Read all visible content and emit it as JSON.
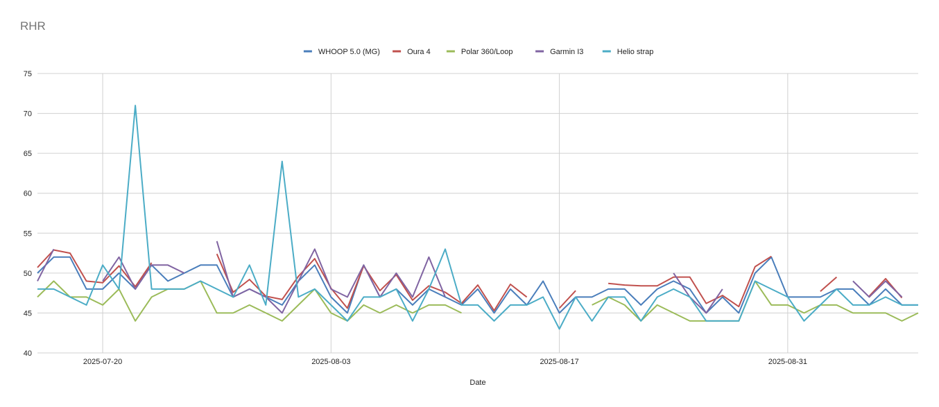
{
  "chart_data": {
    "type": "line",
    "title": "RHR",
    "xlabel": "Date",
    "ylabel": "",
    "ylim": [
      40,
      75
    ],
    "yticks": [
      40,
      45,
      50,
      55,
      60,
      65,
      70,
      75
    ],
    "x_start": "2025-07-16",
    "x_end": "2025-09-08",
    "xticks": [
      "2025-07-20",
      "2025-08-03",
      "2025-08-17",
      "2025-08-31"
    ],
    "grid": true,
    "legend_position": "top",
    "colors": {
      "WHOOP 5.0 (MG)": "#4a7ebb",
      "Oura 4": "#c0504d",
      "Polar 360/Loop": "#9bbb59",
      "Garmin I3": "#8064a2",
      "Helio strap": "#4bacc6"
    },
    "series": [
      {
        "name": "WHOOP 5.0 (MG)",
        "points": [
          [
            "2025-07-16",
            50
          ],
          [
            "2025-07-17",
            52
          ],
          [
            "2025-07-18",
            52
          ],
          [
            "2025-07-19",
            48
          ],
          [
            "2025-07-20",
            48
          ],
          [
            "2025-07-21",
            50
          ],
          [
            "2025-07-22",
            48
          ],
          [
            "2025-07-23",
            51
          ],
          [
            "2025-07-24",
            49
          ],
          [
            "2025-07-25",
            50
          ],
          [
            "2025-07-26",
            51
          ],
          [
            "2025-07-27",
            51
          ],
          [
            "2025-07-28",
            47
          ],
          [
            "2025-07-29",
            48
          ],
          [
            "2025-07-30",
            47
          ],
          [
            "2025-07-31",
            46
          ],
          [
            "2025-08-01",
            49
          ],
          [
            "2025-08-02",
            51
          ],
          [
            "2025-08-03",
            47
          ],
          [
            "2025-08-04",
            45
          ],
          [
            "2025-08-05",
            51
          ],
          [
            "2025-08-06",
            47
          ],
          [
            "2025-08-07",
            48
          ],
          [
            "2025-08-08",
            46
          ],
          [
            "2025-08-09",
            48
          ],
          [
            "2025-08-10",
            47
          ],
          [
            "2025-08-11",
            46
          ],
          [
            "2025-08-12",
            48
          ],
          [
            "2025-08-13",
            45
          ],
          [
            "2025-08-14",
            48
          ],
          [
            "2025-08-15",
            46
          ],
          [
            "2025-08-16",
            49
          ],
          [
            "2025-08-17",
            45
          ],
          [
            "2025-08-18",
            47
          ],
          [
            "2025-08-19",
            47
          ],
          [
            "2025-08-20",
            48
          ],
          [
            "2025-08-21",
            48
          ],
          [
            "2025-08-22",
            46
          ],
          [
            "2025-08-23",
            48
          ],
          [
            "2025-08-24",
            49
          ],
          [
            "2025-08-25",
            48
          ],
          [
            "2025-08-26",
            45
          ],
          [
            "2025-08-27",
            47
          ],
          [
            "2025-08-28",
            45
          ],
          [
            "2025-08-29",
            50
          ],
          [
            "2025-08-30",
            52
          ],
          [
            "2025-08-31",
            47
          ],
          [
            "2025-09-01",
            47
          ],
          [
            "2025-09-02",
            47
          ],
          [
            "2025-09-03",
            48
          ],
          [
            "2025-09-04",
            48
          ],
          [
            "2025-09-05",
            46
          ],
          [
            "2025-09-06",
            48
          ],
          [
            "2025-09-07",
            46
          ],
          [
            "2025-09-08",
            46
          ]
        ]
      },
      {
        "name": "Oura 4",
        "points": [
          [
            "2025-07-16",
            50.7
          ],
          [
            "2025-07-17",
            52.9
          ],
          [
            "2025-07-18",
            52.5
          ],
          [
            "2025-07-19",
            49
          ],
          [
            "2025-07-20",
            48.8
          ],
          [
            "2025-07-21",
            50.9
          ],
          [
            "2025-07-22",
            48.3
          ],
          [
            "2025-07-23",
            51.3
          ],
          null,
          [
            "2025-07-27",
            52.4
          ],
          [
            "2025-07-28",
            47.6
          ],
          [
            "2025-07-29",
            49.2
          ],
          [
            "2025-07-30",
            47.1
          ],
          [
            "2025-07-31",
            46.7
          ],
          [
            "2025-08-01",
            49.6
          ],
          [
            "2025-08-02",
            51.8
          ],
          [
            "2025-08-03",
            48.1
          ],
          [
            "2025-08-04",
            45.6
          ],
          [
            "2025-08-05",
            50.9
          ],
          [
            "2025-08-06",
            47.8
          ],
          [
            "2025-08-07",
            49.8
          ],
          [
            "2025-08-08",
            46.6
          ],
          [
            "2025-08-09",
            48.4
          ],
          [
            "2025-08-10",
            47.6
          ],
          [
            "2025-08-11",
            46.2
          ],
          [
            "2025-08-12",
            48.5
          ],
          [
            "2025-08-13",
            45.3
          ],
          [
            "2025-08-14",
            48.6
          ],
          [
            "2025-08-15",
            47
          ],
          null,
          [
            "2025-08-17",
            45.6
          ],
          [
            "2025-08-18",
            47.8
          ],
          null,
          [
            "2025-08-20",
            48.7
          ],
          [
            "2025-08-21",
            48.5
          ],
          [
            "2025-08-22",
            48.4
          ],
          [
            "2025-08-23",
            48.4
          ],
          [
            "2025-08-24",
            49.5
          ],
          [
            "2025-08-25",
            49.5
          ],
          [
            "2025-08-26",
            46.2
          ],
          [
            "2025-08-27",
            47.2
          ],
          [
            "2025-08-28",
            45.8
          ],
          [
            "2025-08-29",
            50.8
          ],
          [
            "2025-08-30",
            52.1
          ],
          null,
          [
            "2025-09-02",
            47.7
          ],
          [
            "2025-09-03",
            49.5
          ],
          null,
          [
            "2025-09-05",
            47.1
          ],
          [
            "2025-09-06",
            49.3
          ],
          [
            "2025-09-07",
            46.9
          ]
        ]
      },
      {
        "name": "Polar 360/Loop",
        "points": [
          [
            "2025-07-16",
            47
          ],
          [
            "2025-07-17",
            49
          ],
          [
            "2025-07-18",
            47
          ],
          [
            "2025-07-19",
            47
          ],
          [
            "2025-07-20",
            46
          ],
          [
            "2025-07-21",
            48
          ],
          [
            "2025-07-22",
            44
          ],
          [
            "2025-07-23",
            47
          ],
          [
            "2025-07-24",
            48
          ],
          [
            "2025-07-25",
            48
          ],
          [
            "2025-07-26",
            49
          ],
          [
            "2025-07-27",
            45
          ],
          [
            "2025-07-28",
            45
          ],
          [
            "2025-07-29",
            46
          ],
          [
            "2025-07-30",
            45
          ],
          [
            "2025-07-31",
            44
          ],
          [
            "2025-08-01",
            46
          ],
          [
            "2025-08-02",
            48
          ],
          [
            "2025-08-03",
            45
          ],
          [
            "2025-08-04",
            44
          ],
          [
            "2025-08-05",
            46
          ],
          [
            "2025-08-06",
            45
          ],
          [
            "2025-08-07",
            46
          ],
          [
            "2025-08-08",
            45
          ],
          [
            "2025-08-09",
            46
          ],
          [
            "2025-08-10",
            46
          ],
          [
            "2025-08-11",
            45
          ],
          null,
          [
            "2025-08-19",
            46
          ],
          [
            "2025-08-20",
            47
          ],
          [
            "2025-08-21",
            46
          ],
          [
            "2025-08-22",
            44
          ],
          [
            "2025-08-23",
            46
          ],
          [
            "2025-08-24",
            45
          ],
          [
            "2025-08-25",
            44
          ],
          [
            "2025-08-26",
            44
          ],
          [
            "2025-08-27",
            44
          ],
          [
            "2025-08-28",
            44
          ],
          [
            "2025-08-29",
            49
          ],
          [
            "2025-08-30",
            46
          ],
          [
            "2025-08-31",
            46
          ],
          [
            "2025-09-01",
            45
          ],
          [
            "2025-09-02",
            46
          ],
          [
            "2025-09-03",
            46
          ],
          [
            "2025-09-04",
            45
          ],
          [
            "2025-09-05",
            45
          ],
          [
            "2025-09-06",
            45
          ],
          [
            "2025-09-07",
            44
          ],
          [
            "2025-09-08",
            45
          ]
        ]
      },
      {
        "name": "Garmin I3",
        "points": [
          [
            "2025-07-16",
            49
          ],
          [
            "2025-07-17",
            53
          ],
          null,
          [
            "2025-07-20",
            49
          ],
          [
            "2025-07-21",
            52
          ],
          [
            "2025-07-22",
            48
          ],
          [
            "2025-07-23",
            51
          ],
          [
            "2025-07-24",
            51
          ],
          [
            "2025-07-25",
            50
          ],
          null,
          [
            "2025-07-27",
            54
          ],
          [
            "2025-07-28",
            47
          ],
          [
            "2025-07-29",
            48
          ],
          [
            "2025-07-30",
            47
          ],
          [
            "2025-07-31",
            45
          ],
          [
            "2025-08-01",
            49
          ],
          [
            "2025-08-02",
            53
          ],
          [
            "2025-08-03",
            48
          ],
          [
            "2025-08-04",
            47
          ],
          [
            "2025-08-05",
            51
          ],
          [
            "2025-08-06",
            47
          ],
          [
            "2025-08-07",
            50
          ],
          [
            "2025-08-08",
            47
          ],
          [
            "2025-08-09",
            52
          ],
          [
            "2025-08-10",
            47
          ],
          null,
          [
            "2025-08-24",
            50
          ],
          [
            "2025-08-25",
            47
          ],
          [
            "2025-08-26",
            45
          ],
          [
            "2025-08-27",
            48
          ],
          null,
          [
            "2025-09-04",
            49
          ],
          [
            "2025-09-05",
            47
          ],
          [
            "2025-09-06",
            49
          ],
          [
            "2025-09-07",
            47
          ]
        ]
      },
      {
        "name": "Helio strap",
        "points": [
          [
            "2025-07-16",
            48
          ],
          [
            "2025-07-17",
            48
          ],
          [
            "2025-07-18",
            47
          ],
          [
            "2025-07-19",
            46
          ],
          [
            "2025-07-20",
            51
          ],
          [
            "2025-07-21",
            48
          ],
          [
            "2025-07-22",
            71
          ],
          [
            "2025-07-23",
            48
          ],
          [
            "2025-07-24",
            48
          ],
          [
            "2025-07-25",
            48
          ],
          [
            "2025-07-26",
            49
          ],
          [
            "2025-07-27",
            48
          ],
          [
            "2025-07-28",
            47
          ],
          [
            "2025-07-29",
            51
          ],
          [
            "2025-07-30",
            46
          ],
          [
            "2025-07-31",
            64
          ],
          [
            "2025-08-01",
            47
          ],
          [
            "2025-08-02",
            48
          ],
          [
            "2025-08-03",
            46
          ],
          [
            "2025-08-04",
            44
          ],
          [
            "2025-08-05",
            47
          ],
          [
            "2025-08-06",
            47
          ],
          [
            "2025-08-07",
            48
          ],
          [
            "2025-08-08",
            44
          ],
          [
            "2025-08-09",
            48
          ],
          [
            "2025-08-10",
            53
          ],
          [
            "2025-08-11",
            46
          ],
          [
            "2025-08-12",
            46
          ],
          [
            "2025-08-13",
            44
          ],
          [
            "2025-08-14",
            46
          ],
          [
            "2025-08-15",
            46
          ],
          [
            "2025-08-16",
            47
          ],
          [
            "2025-08-17",
            43
          ],
          [
            "2025-08-18",
            47
          ],
          [
            "2025-08-19",
            44
          ],
          [
            "2025-08-20",
            47
          ],
          [
            "2025-08-21",
            47
          ],
          [
            "2025-08-22",
            44
          ],
          [
            "2025-08-23",
            47
          ],
          [
            "2025-08-24",
            48
          ],
          [
            "2025-08-25",
            47
          ],
          [
            "2025-08-26",
            44
          ],
          [
            "2025-08-27",
            44
          ],
          [
            "2025-08-28",
            44
          ],
          [
            "2025-08-29",
            49
          ],
          [
            "2025-08-30",
            48
          ],
          [
            "2025-08-31",
            47
          ],
          [
            "2025-09-01",
            44
          ],
          [
            "2025-09-02",
            46
          ],
          [
            "2025-09-03",
            48
          ],
          [
            "2025-09-04",
            46
          ],
          [
            "2025-09-05",
            46
          ],
          [
            "2025-09-06",
            47
          ],
          [
            "2025-09-07",
            46
          ],
          [
            "2025-09-08",
            46
          ]
        ]
      }
    ]
  }
}
